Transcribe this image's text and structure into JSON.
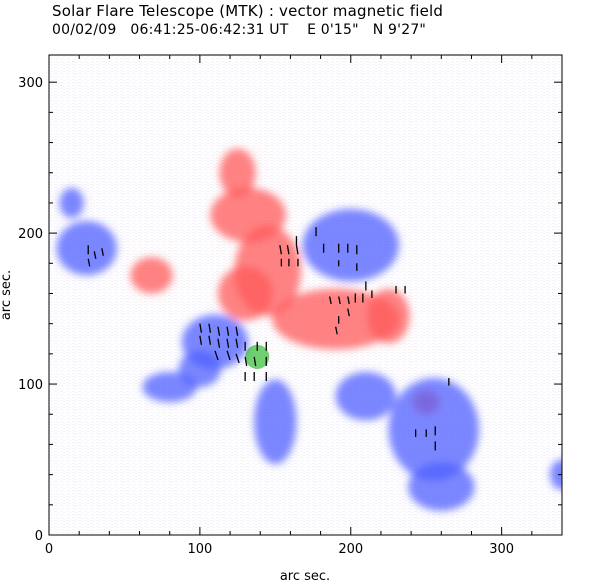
{
  "header": {
    "title": "Solar Flare Telescope (MTK) : vector magnetic field",
    "subtitle": "00/02/09   06:41:25-06:42:31 UT    E 0'15\"   N 9'27\""
  },
  "chart_data": {
    "type": "heatmap",
    "title": "Solar Flare Telescope (MTK) : vector magnetic field",
    "subtitle": "00/02/09   06:41:25-06:42:31 UT    E 0'15\"   N 9'27\"",
    "xlabel": "arc sec.",
    "ylabel": "arc sec.",
    "xlim": [
      0,
      340
    ],
    "ylim": [
      0,
      318
    ],
    "xticks": [
      0,
      100,
      200,
      300
    ],
    "yticks": [
      0,
      100,
      200,
      300
    ],
    "grid": false,
    "colors": {
      "positive": "#ff5a5a",
      "negative": "#4f60ff",
      "vector": "#000000",
      "highlight": "#00aa00"
    },
    "polarity_regions": [
      {
        "polarity": "positive",
        "x": 145,
        "y": 175,
        "rx": 22,
        "ry": 30
      },
      {
        "polarity": "positive",
        "x": 132,
        "y": 212,
        "rx": 25,
        "ry": 18
      },
      {
        "polarity": "positive",
        "x": 130,
        "y": 160,
        "rx": 18,
        "ry": 18
      },
      {
        "polarity": "positive",
        "x": 190,
        "y": 143,
        "rx": 42,
        "ry": 20
      },
      {
        "polarity": "positive",
        "x": 225,
        "y": 145,
        "rx": 14,
        "ry": 18
      },
      {
        "polarity": "positive",
        "x": 68,
        "y": 172,
        "rx": 14,
        "ry": 12
      },
      {
        "polarity": "positive",
        "x": 125,
        "y": 240,
        "rx": 12,
        "ry": 16
      },
      {
        "polarity": "positive",
        "x": 250,
        "y": 88,
        "rx": 9,
        "ry": 8
      },
      {
        "polarity": "negative",
        "x": 110,
        "y": 128,
        "rx": 22,
        "ry": 18
      },
      {
        "polarity": "negative",
        "x": 100,
        "y": 110,
        "rx": 14,
        "ry": 12
      },
      {
        "polarity": "negative",
        "x": 200,
        "y": 192,
        "rx": 32,
        "ry": 24
      },
      {
        "polarity": "negative",
        "x": 255,
        "y": 70,
        "rx": 30,
        "ry": 34
      },
      {
        "polarity": "negative",
        "x": 210,
        "y": 92,
        "rx": 20,
        "ry": 16
      },
      {
        "polarity": "negative",
        "x": 25,
        "y": 190,
        "rx": 20,
        "ry": 18
      },
      {
        "polarity": "negative",
        "x": 260,
        "y": 32,
        "rx": 22,
        "ry": 16
      },
      {
        "polarity": "negative",
        "x": 150,
        "y": 75,
        "rx": 14,
        "ry": 28
      },
      {
        "polarity": "negative",
        "x": 80,
        "y": 98,
        "rx": 18,
        "ry": 10
      },
      {
        "polarity": "negative",
        "x": 15,
        "y": 220,
        "rx": 8,
        "ry": 10
      },
      {
        "polarity": "negative",
        "x": 340,
        "y": 40,
        "rx": 8,
        "ry": 10
      }
    ],
    "vectors": [
      {
        "x": 26,
        "y": 192,
        "dx": 0,
        "dy": -6
      },
      {
        "x": 26,
        "y": 183,
        "dx": 1,
        "dy": -5
      },
      {
        "x": 30,
        "y": 188,
        "dx": 1,
        "dy": -5
      },
      {
        "x": 35,
        "y": 190,
        "dx": 1,
        "dy": -5
      },
      {
        "x": 100,
        "y": 140,
        "dx": 1,
        "dy": -6
      },
      {
        "x": 106,
        "y": 140,
        "dx": 1,
        "dy": -6
      },
      {
        "x": 112,
        "y": 138,
        "dx": 1,
        "dy": -6
      },
      {
        "x": 118,
        "y": 138,
        "dx": 1,
        "dy": -6
      },
      {
        "x": 124,
        "y": 138,
        "dx": 1,
        "dy": -6
      },
      {
        "x": 100,
        "y": 132,
        "dx": 1,
        "dy": -6
      },
      {
        "x": 106,
        "y": 132,
        "dx": 1,
        "dy": -6
      },
      {
        "x": 112,
        "y": 130,
        "dx": 1,
        "dy": -6
      },
      {
        "x": 118,
        "y": 130,
        "dx": 1,
        "dy": -6
      },
      {
        "x": 124,
        "y": 130,
        "dx": 1,
        "dy": -6
      },
      {
        "x": 110,
        "y": 122,
        "dx": 2,
        "dy": -6
      },
      {
        "x": 118,
        "y": 122,
        "dx": 2,
        "dy": -6
      },
      {
        "x": 124,
        "y": 120,
        "dx": 2,
        "dy": -6
      },
      {
        "x": 130,
        "y": 128,
        "dx": 0,
        "dy": -6
      },
      {
        "x": 138,
        "y": 128,
        "dx": 0,
        "dy": -6
      },
      {
        "x": 144,
        "y": 128,
        "dx": 0,
        "dy": -6
      },
      {
        "x": 130,
        "y": 118,
        "dx": 1,
        "dy": -6
      },
      {
        "x": 136,
        "y": 118,
        "dx": 1,
        "dy": -6
      },
      {
        "x": 144,
        "y": 118,
        "dx": 0,
        "dy": -6
      },
      {
        "x": 130,
        "y": 108,
        "dx": 0,
        "dy": -6
      },
      {
        "x": 136,
        "y": 108,
        "dx": 0,
        "dy": -6
      },
      {
        "x": 144,
        "y": 108,
        "dx": 0,
        "dy": -6
      },
      {
        "x": 153,
        "y": 192,
        "dx": 1,
        "dy": -6
      },
      {
        "x": 158,
        "y": 192,
        "dx": 1,
        "dy": -6
      },
      {
        "x": 164,
        "y": 192,
        "dx": 1,
        "dy": -6
      },
      {
        "x": 154,
        "y": 183,
        "dx": 0,
        "dy": -5
      },
      {
        "x": 159,
        "y": 183,
        "dx": 0,
        "dy": -5
      },
      {
        "x": 165,
        "y": 183,
        "dx": 0,
        "dy": -5
      },
      {
        "x": 164,
        "y": 198,
        "dx": 0,
        "dy": -6
      },
      {
        "x": 177,
        "y": 204,
        "dx": 0,
        "dy": -6
      },
      {
        "x": 182,
        "y": 193,
        "dx": 0,
        "dy": -6
      },
      {
        "x": 192,
        "y": 193,
        "dx": 0,
        "dy": -6
      },
      {
        "x": 198,
        "y": 193,
        "dx": 0,
        "dy": -6
      },
      {
        "x": 204,
        "y": 192,
        "dx": 0,
        "dy": -6
      },
      {
        "x": 192,
        "y": 182,
        "dx": 0,
        "dy": -4
      },
      {
        "x": 204,
        "y": 180,
        "dx": 0,
        "dy": -5
      },
      {
        "x": 210,
        "y": 168,
        "dx": 0,
        "dy": -6
      },
      {
        "x": 186,
        "y": 158,
        "dx": 1,
        "dy": -5
      },
      {
        "x": 192,
        "y": 158,
        "dx": 1,
        "dy": -5
      },
      {
        "x": 198,
        "y": 158,
        "dx": 1,
        "dy": -5
      },
      {
        "x": 203,
        "y": 160,
        "dx": 0,
        "dy": -6
      },
      {
        "x": 208,
        "y": 160,
        "dx": 0,
        "dy": -6
      },
      {
        "x": 214,
        "y": 162,
        "dx": 0,
        "dy": -5
      },
      {
        "x": 198,
        "y": 150,
        "dx": 1,
        "dy": -5
      },
      {
        "x": 192,
        "y": 145,
        "dx": 0,
        "dy": -5
      },
      {
        "x": 190,
        "y": 138,
        "dx": 1,
        "dy": -5
      },
      {
        "x": 230,
        "y": 165,
        "dx": 0,
        "dy": -5
      },
      {
        "x": 236,
        "y": 165,
        "dx": 0,
        "dy": -5
      },
      {
        "x": 243,
        "y": 70,
        "dx": 0,
        "dy": -5
      },
      {
        "x": 250,
        "y": 70,
        "dx": 0,
        "dy": -5
      },
      {
        "x": 256,
        "y": 72,
        "dx": 0,
        "dy": -6
      },
      {
        "x": 256,
        "y": 62,
        "dx": 0,
        "dy": -6
      },
      {
        "x": 265,
        "y": 104,
        "dx": 0,
        "dy": -5
      }
    ],
    "highlight_region": {
      "x": 138,
      "y": 118,
      "rx": 8,
      "ry": 8
    }
  }
}
